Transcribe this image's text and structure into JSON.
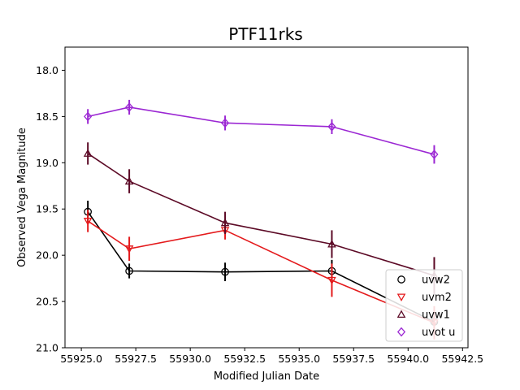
{
  "chart_data": {
    "type": "scatter",
    "title": "PTF11rks",
    "xlabel": "Modified Julian Date",
    "ylabel": "Observed Vega Magnitude",
    "xlim": [
      55924.25,
      55942.75
    ],
    "ylim": [
      21.0,
      17.75
    ],
    "y_inverted": true,
    "xticks": [
      55925.0,
      55927.5,
      55930.0,
      55932.5,
      55935.0,
      55937.5,
      55940.0,
      55942.5
    ],
    "xtick_labels": [
      "55925.0",
      "55927.5",
      "55930.0",
      "55932.5",
      "55935.0",
      "55937.5",
      "55940.0",
      "55942.5"
    ],
    "yticks": [
      18.0,
      18.5,
      19.0,
      19.5,
      20.0,
      20.5,
      21.0
    ],
    "ytick_labels": [
      "18.0",
      "18.5",
      "19.0",
      "19.5",
      "20.0",
      "20.5",
      "21.0"
    ],
    "grid": false,
    "legend_position": "lower-right",
    "series": [
      {
        "name": "uvw2",
        "marker": "circle",
        "color": "#000000",
        "x": [
          55925.3,
          55927.2,
          55931.6,
          55936.5,
          55941.2
        ],
        "y": [
          19.53,
          20.17,
          20.18,
          20.17,
          20.72
        ],
        "yerr": [
          0.12,
          0.08,
          0.1,
          0.12,
          0.1
        ]
      },
      {
        "name": "uvm2",
        "marker": "triangle-down",
        "color": "#e41a1c",
        "x": [
          55925.3,
          55927.2,
          55931.6,
          55936.5,
          55941.2
        ],
        "y": [
          19.63,
          19.93,
          19.73,
          20.27,
          20.73
        ],
        "yerr": [
          0.12,
          0.13,
          0.1,
          0.18,
          0.18
        ]
      },
      {
        "name": "uvw1",
        "marker": "triangle-up",
        "color": "#5c0a26",
        "x": [
          55925.3,
          55927.2,
          55931.6,
          55936.5,
          55941.2
        ],
        "y": [
          18.9,
          19.2,
          19.65,
          19.88,
          20.22
        ],
        "yerr": [
          0.12,
          0.13,
          0.12,
          0.15,
          0.2
        ]
      },
      {
        "name": "uvot u",
        "marker": "diamond",
        "color": "#9b27d3",
        "x": [
          55925.3,
          55927.2,
          55931.6,
          55936.5,
          55941.2
        ],
        "y": [
          18.5,
          18.4,
          18.57,
          18.61,
          18.91
        ],
        "yerr": [
          0.08,
          0.08,
          0.08,
          0.08,
          0.1
        ]
      }
    ]
  }
}
